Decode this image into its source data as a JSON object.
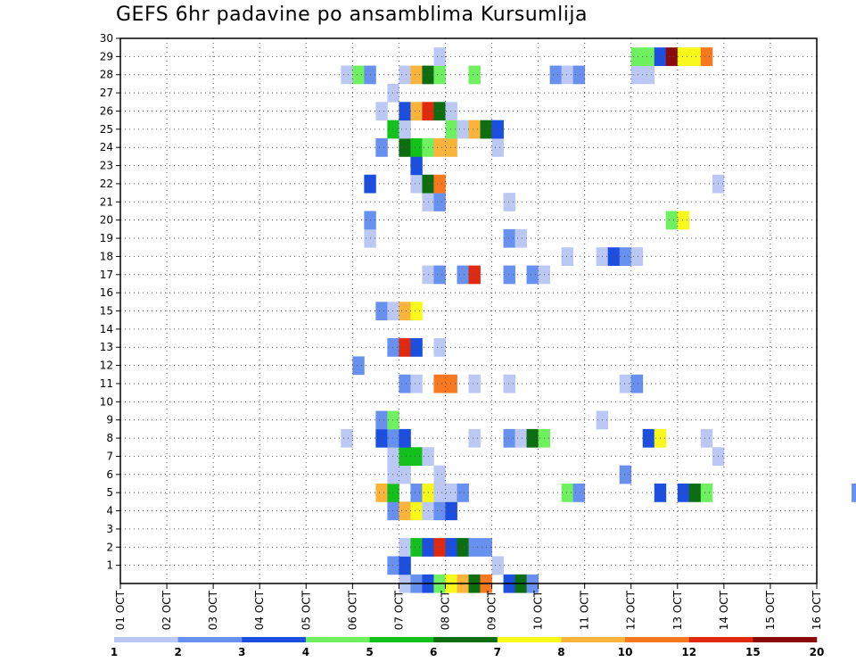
{
  "title": "GEFS 6hr padavine po ansamblima Kursumlija",
  "colors": {
    "grid": "#555555",
    "frame": "#000000"
  },
  "chart_data": {
    "type": "heatmap",
    "title": "GEFS 6hr padavine po ansamblima Kursumlija",
    "xlabel": "",
    "ylabel": "",
    "x_ticks": [
      "01 OCT",
      "02 OCT",
      "03 OCT",
      "04 OCT",
      "05 OCT",
      "06 OCT",
      "07 OCT",
      "08 OCT",
      "09 OCT",
      "10 OCT",
      "11 OCT",
      "12 OCT",
      "13 OCT",
      "14 OCT",
      "15 OCT",
      "16 OCT"
    ],
    "y_ticks": [
      1,
      2,
      3,
      4,
      5,
      6,
      7,
      8,
      9,
      10,
      11,
      12,
      13,
      14,
      15,
      16,
      17,
      18,
      19,
      20,
      21,
      22,
      23,
      24,
      25,
      26,
      27,
      28,
      29,
      30
    ],
    "x_range_days": [
      1,
      16
    ],
    "y_range": [
      0,
      30
    ],
    "grid": true,
    "colorbar": {
      "labels": [
        "1",
        "2",
        "3",
        "4",
        "5",
        "6",
        "7",
        "8",
        "10",
        "12",
        "15",
        "20"
      ],
      "colors": [
        "#bcc8f4",
        "#6890ee",
        "#1c4ee0",
        "#6ef060",
        "#13c01c",
        "#0c6e10",
        "#f8f81a",
        "#fab43c",
        "#f87820",
        "#e02a10",
        "#8c0a0a"
      ]
    },
    "cells": [
      {
        "m": 0,
        "c": [
          [
            7.0,
            1
          ],
          [
            7.25,
            2
          ],
          [
            7.5,
            3
          ],
          [
            7.75,
            4
          ],
          [
            8.0,
            7
          ],
          [
            8.25,
            8
          ],
          [
            8.5,
            6
          ],
          [
            8.75,
            9
          ],
          [
            9.25,
            3
          ],
          [
            9.5,
            6
          ],
          [
            9.75,
            2
          ]
        ]
      },
      {
        "m": 1,
        "c": [
          [
            6.75,
            2
          ],
          [
            7.0,
            3
          ],
          [
            9.0,
            1
          ]
        ]
      },
      {
        "m": 2,
        "c": [
          [
            7.0,
            1
          ],
          [
            7.25,
            5
          ],
          [
            7.5,
            3
          ],
          [
            7.75,
            10
          ],
          [
            8.0,
            3
          ],
          [
            8.25,
            6
          ],
          [
            8.5,
            2
          ],
          [
            8.75,
            2
          ]
        ]
      },
      {
        "m": 4,
        "c": [
          [
            6.75,
            2
          ],
          [
            7.0,
            8
          ],
          [
            7.25,
            7
          ],
          [
            7.5,
            1
          ],
          [
            7.75,
            2
          ],
          [
            8.0,
            3
          ]
        ]
      },
      {
        "m": 5,
        "c": [
          [
            6.5,
            8
          ],
          [
            6.75,
            5
          ],
          [
            7.25,
            2
          ],
          [
            7.5,
            7
          ],
          [
            7.75,
            1
          ],
          [
            8.0,
            1
          ],
          [
            8.25,
            2
          ],
          [
            10.5,
            4
          ],
          [
            10.75,
            2
          ],
          [
            12.5,
            3
          ],
          [
            13.0,
            3
          ],
          [
            13.25,
            6
          ],
          [
            13.5,
            4
          ],
          [
            16.75,
            2
          ]
        ]
      },
      {
        "m": 6,
        "c": [
          [
            6.75,
            1
          ],
          [
            7.0,
            1
          ],
          [
            7.75,
            1
          ],
          [
            11.75,
            2
          ]
        ]
      },
      {
        "m": 7,
        "c": [
          [
            6.75,
            1
          ],
          [
            7.0,
            5
          ],
          [
            7.25,
            5
          ],
          [
            7.5,
            1
          ],
          [
            13.75,
            1
          ]
        ]
      },
      {
        "m": 8,
        "c": [
          [
            5.75,
            1
          ],
          [
            6.5,
            3
          ],
          [
            6.75,
            2
          ],
          [
            7.0,
            3
          ],
          [
            8.5,
            1
          ],
          [
            9.25,
            2
          ],
          [
            9.5,
            1
          ],
          [
            9.75,
            6
          ],
          [
            10.0,
            4
          ],
          [
            12.25,
            3
          ],
          [
            12.5,
            7
          ],
          [
            13.5,
            1
          ]
        ]
      },
      {
        "m": 9,
        "c": [
          [
            6.5,
            2
          ],
          [
            6.75,
            4
          ],
          [
            11.25,
            1
          ]
        ]
      },
      {
        "m": 11,
        "c": [
          [
            7.0,
            2
          ],
          [
            7.25,
            1
          ],
          [
            7.75,
            9
          ],
          [
            8.0,
            9
          ],
          [
            8.5,
            1
          ],
          [
            9.25,
            1
          ],
          [
            11.75,
            1
          ],
          [
            12.0,
            2
          ]
        ]
      },
      {
        "m": 12,
        "c": [
          [
            6.0,
            2
          ]
        ]
      },
      {
        "m": 13,
        "c": [
          [
            6.75,
            2
          ],
          [
            7.0,
            10
          ],
          [
            7.25,
            3
          ],
          [
            7.75,
            1
          ]
        ]
      },
      {
        "m": 15,
        "c": [
          [
            6.5,
            2
          ],
          [
            6.75,
            1
          ],
          [
            7.0,
            8
          ],
          [
            7.25,
            7
          ]
        ]
      },
      {
        "m": 17,
        "c": [
          [
            7.5,
            1
          ],
          [
            7.75,
            2
          ],
          [
            8.25,
            2
          ],
          [
            8.5,
            10
          ],
          [
            9.25,
            2
          ],
          [
            9.75,
            2
          ],
          [
            10.0,
            1
          ]
        ]
      },
      {
        "m": 18,
        "c": [
          [
            10.5,
            1
          ],
          [
            11.25,
            1
          ],
          [
            11.5,
            3
          ],
          [
            11.75,
            2
          ],
          [
            12.0,
            1
          ]
        ]
      },
      {
        "m": 19,
        "c": [
          [
            6.25,
            1
          ],
          [
            9.25,
            2
          ],
          [
            9.5,
            1
          ]
        ]
      },
      {
        "m": 20,
        "c": [
          [
            6.25,
            2
          ],
          [
            12.75,
            4
          ],
          [
            13.0,
            7
          ]
        ]
      },
      {
        "m": 21,
        "c": [
          [
            7.5,
            1
          ],
          [
            7.75,
            2
          ],
          [
            9.25,
            1
          ]
        ]
      },
      {
        "m": 22,
        "c": [
          [
            6.25,
            3
          ],
          [
            7.25,
            1
          ],
          [
            7.5,
            6
          ],
          [
            7.75,
            9
          ],
          [
            13.75,
            1
          ]
        ]
      },
      {
        "m": 23,
        "c": [
          [
            7.25,
            3
          ]
        ]
      },
      {
        "m": 24,
        "c": [
          [
            6.5,
            2
          ],
          [
            7.0,
            6
          ],
          [
            7.25,
            5
          ],
          [
            7.5,
            4
          ],
          [
            7.75,
            8
          ],
          [
            8.0,
            8
          ],
          [
            9.0,
            1
          ]
        ]
      },
      {
        "m": 25,
        "c": [
          [
            6.75,
            5
          ],
          [
            7.0,
            1
          ],
          [
            8.0,
            4
          ],
          [
            8.25,
            1
          ],
          [
            8.5,
            8
          ],
          [
            8.75,
            6
          ],
          [
            9.0,
            3
          ]
        ]
      },
      {
        "m": 26,
        "c": [
          [
            6.5,
            1
          ],
          [
            7.0,
            3
          ],
          [
            7.25,
            8
          ],
          [
            7.5,
            10
          ],
          [
            7.75,
            6
          ],
          [
            8.0,
            1
          ]
        ]
      },
      {
        "m": 27,
        "c": [
          [
            6.75,
            1
          ]
        ]
      },
      {
        "m": 28,
        "c": [
          [
            5.75,
            1
          ],
          [
            6.0,
            4
          ],
          [
            6.25,
            2
          ],
          [
            7.0,
            1
          ],
          [
            7.25,
            8
          ],
          [
            7.5,
            6
          ],
          [
            7.75,
            4
          ],
          [
            8.5,
            4
          ],
          [
            10.25,
            2
          ],
          [
            10.5,
            1
          ],
          [
            10.75,
            2
          ],
          [
            12.0,
            1
          ],
          [
            12.25,
            1
          ]
        ]
      },
      {
        "m": 29,
        "c": [
          [
            7.75,
            1
          ],
          [
            12.0,
            4
          ],
          [
            12.25,
            4
          ],
          [
            12.5,
            3
          ],
          [
            12.75,
            11
          ],
          [
            13.0,
            7
          ],
          [
            13.25,
            7
          ],
          [
            13.5,
            9
          ]
        ]
      }
    ]
  }
}
